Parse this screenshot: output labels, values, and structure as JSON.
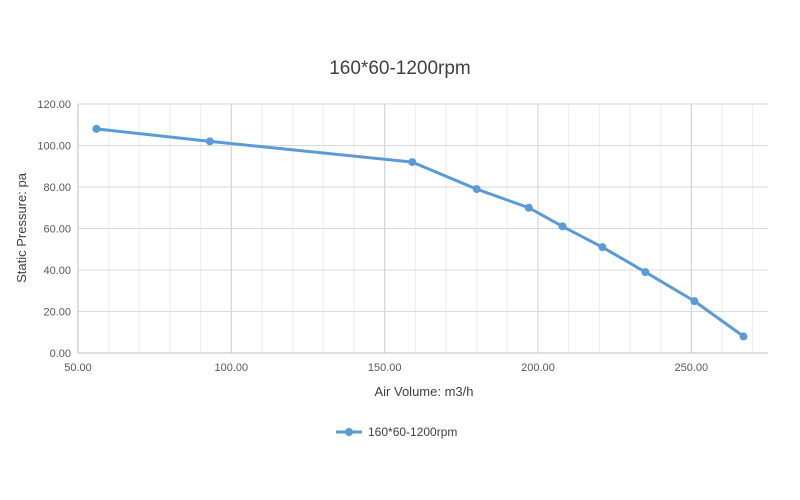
{
  "chart_data": {
    "type": "line",
    "title": "160*60-1200rpm",
    "xlabel": "Air Volume:  m3/h",
    "ylabel": "Static Pressure:  pa",
    "xlim": [
      50,
      275
    ],
    "ylim": [
      0,
      120
    ],
    "x_ticks": [
      "50.00",
      "100.00",
      "150.00",
      "200.00",
      "250.00"
    ],
    "y_ticks": [
      "0.00",
      "20.00",
      "40.00",
      "60.00",
      "80.00",
      "100.00",
      "120.00"
    ],
    "grid": true,
    "legend_position": "bottom",
    "series": [
      {
        "name": "160*60-1200rpm",
        "color": "#5b9bd5",
        "marker": "circle",
        "x": [
          56,
          93,
          159,
          180,
          197,
          208,
          221,
          235,
          251,
          267
        ],
        "y": [
          108,
          102,
          92,
          79,
          70,
          61,
          51,
          39,
          25,
          8
        ]
      }
    ]
  }
}
